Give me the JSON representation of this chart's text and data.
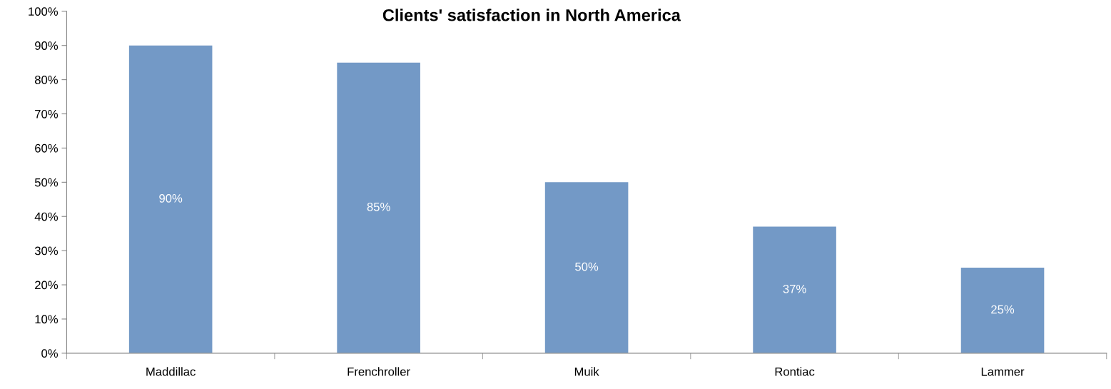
{
  "chart_data": {
    "type": "bar",
    "title": "Clients' satisfaction in North America",
    "categories": [
      "Maddillac",
      "Frenchroller",
      "Muik",
      "Rontiac",
      "Lammer"
    ],
    "values": [
      90,
      85,
      50,
      37,
      25
    ],
    "value_labels": [
      "90%",
      "85%",
      "50%",
      "37%",
      "25%"
    ],
    "color": "#7399c6",
    "ylim": [
      0,
      100
    ],
    "yticks": [
      {
        "value": 0,
        "label": "0%"
      },
      {
        "value": 10,
        "label": "10%"
      },
      {
        "value": 20,
        "label": "20%"
      },
      {
        "value": 30,
        "label": "30%"
      },
      {
        "value": 40,
        "label": "40%"
      },
      {
        "value": 50,
        "label": "50%"
      },
      {
        "value": 60,
        "label": "60%"
      },
      {
        "value": 70,
        "label": "70%"
      },
      {
        "value": 80,
        "label": "80%"
      },
      {
        "value": 90,
        "label": "90%"
      },
      {
        "value": 100,
        "label": "100%"
      }
    ],
    "grid": false,
    "legend": false
  }
}
